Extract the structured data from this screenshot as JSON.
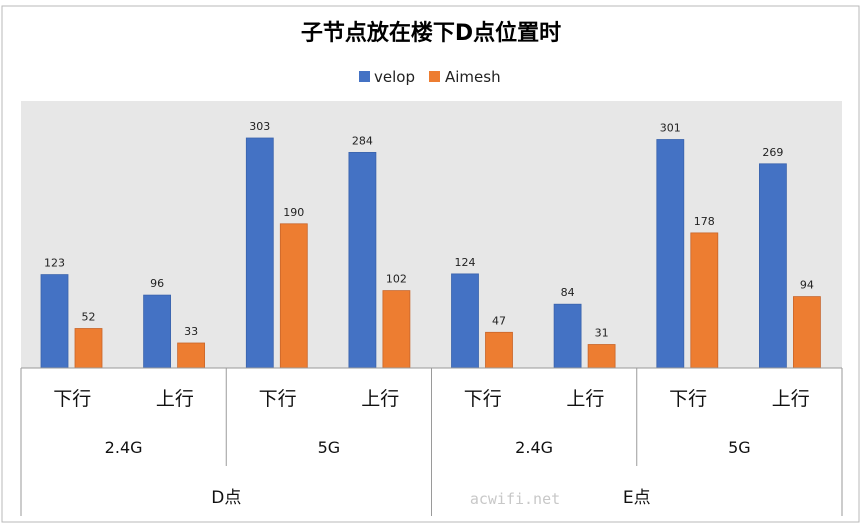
{
  "chart_data": {
    "type": "bar",
    "title": "子节点放在楼下D点位置时",
    "xlabel": "",
    "ylabel": "",
    "ylim": [
      0,
      330
    ],
    "grid": false,
    "legend_position": "top-center",
    "categories": [
      "下行",
      "上行",
      "下行",
      "上行",
      "下行",
      "上行",
      "下行",
      "上行"
    ],
    "bands": [
      "2.4G",
      "5G",
      "2.4G",
      "5G"
    ],
    "locations": [
      "D点",
      "E点"
    ],
    "series": [
      {
        "name": "velop",
        "values": [
          123,
          96,
          303,
          284,
          124,
          84,
          301,
          269
        ]
      },
      {
        "name": "Aimesh",
        "values": [
          52,
          33,
          190,
          102,
          47,
          31,
          178,
          94
        ]
      }
    ],
    "colors": {
      "velop": "#4472C4",
      "Aimesh": "#ED7D31",
      "plot_background": "#E7E7E7"
    }
  },
  "watermark": "acwifi.net"
}
